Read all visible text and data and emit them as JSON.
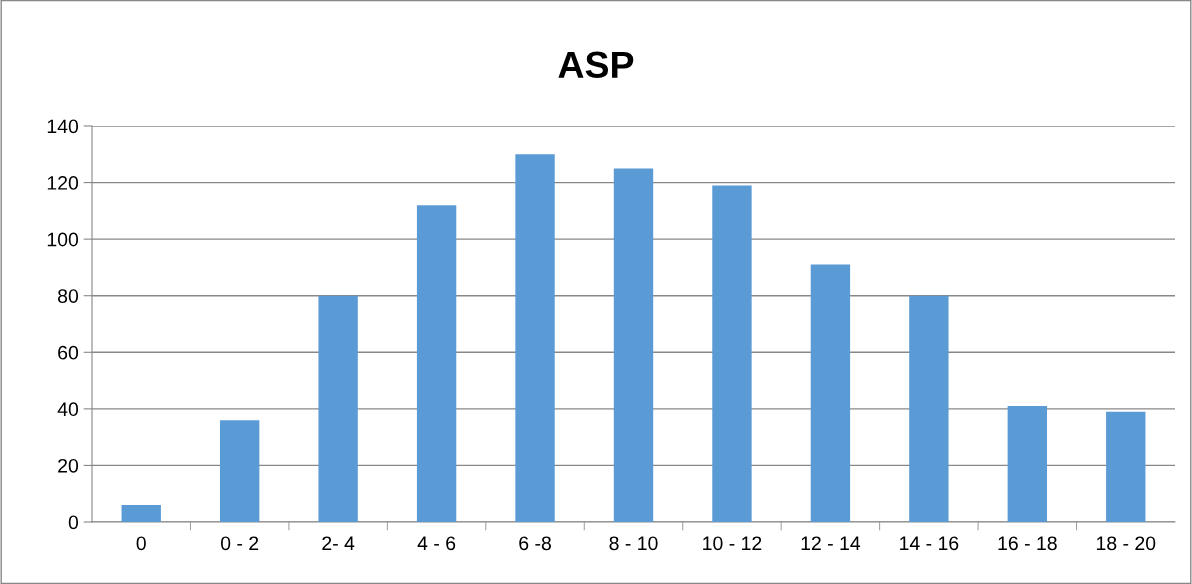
{
  "chart_data": {
    "type": "bar",
    "title": "ASP",
    "categories": [
      "0",
      "0 - 2",
      "2- 4",
      "4 - 6",
      "6 -8",
      "8 - 10",
      "10 - 12",
      "12 - 14",
      "14 - 16",
      "16 - 18",
      "18 - 20"
    ],
    "values": [
      6,
      36,
      80,
      112,
      130,
      125,
      119,
      91,
      80,
      41,
      39
    ],
    "color": "#5b9bd5",
    "ylim": [
      0,
      140
    ],
    "yticks": [
      0,
      20,
      40,
      60,
      80,
      100,
      120,
      140
    ],
    "grid": "y",
    "legend": false
  }
}
